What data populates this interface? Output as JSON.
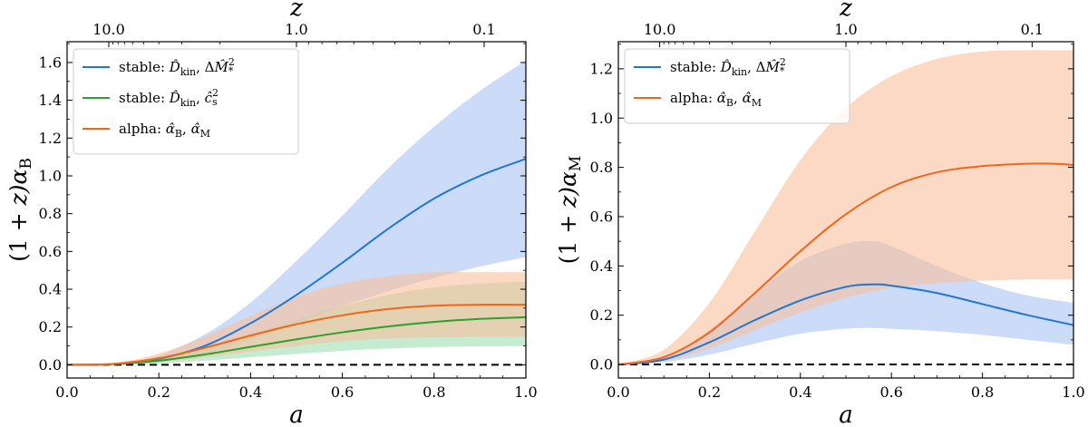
{
  "chart_data": [
    {
      "type": "line",
      "panel": "left",
      "ylabel": "(1 + z)α_B",
      "ylabel_parts": {
        "prefix": "(1 + ",
        "z": "z",
        "mid": ")α",
        "sub": "B"
      },
      "xlabel": "a",
      "top_label": "z",
      "xlim": [
        0.0,
        1.0
      ],
      "ylim": [
        -0.07,
        1.71
      ],
      "x_ticks": [
        "0.0",
        "0.2",
        "0.4",
        "0.6",
        "0.8",
        "1.0"
      ],
      "y_ticks": [
        "0.0",
        "0.2",
        "0.4",
        "0.6",
        "0.8",
        "1.0",
        "1.2",
        "1.4",
        "1.6"
      ],
      "top_ticks": [
        {
          "z": 10,
          "label": "10.0"
        },
        {
          "z": 1,
          "label": "1.0"
        },
        {
          "z": 0.1,
          "label": "0.1"
        }
      ],
      "legend_position": "top-left",
      "series": [
        {
          "name": "stable: D̂_kin, ΔM̂²_*",
          "legend": {
            "prefix": "stable: ",
            "D": "D̂",
            "Dsub": "kin",
            "sep": ", Δ",
            "M": "M̂",
            "Msup": "2",
            "Msub": "*"
          },
          "color": "#1f77d4",
          "fill": "#aac4f4",
          "x": [
            0.0,
            0.1,
            0.2,
            0.3,
            0.4,
            0.5,
            0.6,
            0.7,
            0.8,
            0.9,
            1.0
          ],
          "value": [
            0.0,
            0.004,
            0.032,
            0.1,
            0.22,
            0.37,
            0.54,
            0.72,
            0.88,
            1.0,
            1.09
          ],
          "lower": [
            0.0,
            0.002,
            0.018,
            0.06,
            0.13,
            0.22,
            0.31,
            0.39,
            0.46,
            0.52,
            0.57
          ],
          "upper": [
            0.0,
            0.006,
            0.05,
            0.16,
            0.33,
            0.55,
            0.79,
            1.04,
            1.26,
            1.45,
            1.61
          ]
        },
        {
          "name": "stable: D̂_kin, ĉ²_s",
          "legend": {
            "prefix": "stable: ",
            "D": "D̂",
            "Dsub": "kin",
            "sep": ", ",
            "c": "ĉ",
            "csup": "2",
            "csub": "s"
          },
          "color": "#2ca02c",
          "fill": "#9fdfb2",
          "x": [
            0.0,
            0.1,
            0.2,
            0.3,
            0.4,
            0.5,
            0.6,
            0.7,
            0.8,
            0.9,
            1.0
          ],
          "value": [
            0.0,
            0.004,
            0.022,
            0.055,
            0.095,
            0.135,
            0.172,
            0.203,
            0.227,
            0.243,
            0.252
          ],
          "lower": [
            0.0,
            0.001,
            0.008,
            0.022,
            0.04,
            0.058,
            0.074,
            0.086,
            0.094,
            0.098,
            0.1
          ],
          "upper": [
            0.0,
            0.006,
            0.038,
            0.095,
            0.165,
            0.24,
            0.31,
            0.37,
            0.41,
            0.43,
            0.44
          ]
        },
        {
          "name": "alpha: α̂_B, α̂_M",
          "legend": {
            "prefix": "alpha: ",
            "a1": "α̂",
            "a1sub": "B",
            "sep": ", ",
            "a2": "α̂",
            "a2sub": "M"
          },
          "color": "#f0661a",
          "fill": "#f8c09c",
          "x": [
            0.0,
            0.1,
            0.2,
            0.3,
            0.4,
            0.5,
            0.6,
            0.7,
            0.8,
            0.9,
            1.0
          ],
          "value": [
            0.0,
            0.005,
            0.035,
            0.09,
            0.155,
            0.215,
            0.262,
            0.295,
            0.313,
            0.318,
            0.318
          ],
          "lower": [
            0.0,
            0.002,
            0.015,
            0.04,
            0.07,
            0.1,
            0.125,
            0.14,
            0.145,
            0.148,
            0.148
          ],
          "upper": [
            0.0,
            0.008,
            0.06,
            0.15,
            0.26,
            0.36,
            0.43,
            0.47,
            0.49,
            0.49,
            0.49
          ]
        }
      ]
    },
    {
      "type": "line",
      "panel": "right",
      "ylabel": "(1 + z)α_M",
      "ylabel_parts": {
        "prefix": "(1 + ",
        "z": "z",
        "mid": ")α",
        "sub": "M"
      },
      "xlabel": "a",
      "top_label": "z",
      "xlim": [
        0.0,
        1.0
      ],
      "ylim": [
        -0.055,
        1.31
      ],
      "x_ticks": [
        "0.0",
        "0.2",
        "0.4",
        "0.6",
        "0.8",
        "1.0"
      ],
      "y_ticks": [
        "0.0",
        "0.2",
        "0.4",
        "0.6",
        "0.8",
        "1.0",
        "1.2"
      ],
      "top_ticks": [
        {
          "z": 10,
          "label": "10.0"
        },
        {
          "z": 1,
          "label": "1.0"
        },
        {
          "z": 0.1,
          "label": "0.1"
        }
      ],
      "legend_position": "top-left",
      "series": [
        {
          "name": "stable: D̂_kin, ΔM̂²_*",
          "legend": {
            "prefix": "stable: ",
            "D": "D̂",
            "Dsub": "kin",
            "sep": ", Δ",
            "M": "M̂",
            "Msup": "2",
            "Msub": "*"
          },
          "color": "#1f77d4",
          "fill": "#aac4f4",
          "x": [
            0.0,
            0.1,
            0.2,
            0.3,
            0.4,
            0.5,
            0.56,
            0.6,
            0.7,
            0.8,
            0.9,
            1.0
          ],
          "value": [
            0.0,
            0.02,
            0.09,
            0.18,
            0.26,
            0.315,
            0.325,
            0.32,
            0.29,
            0.245,
            0.2,
            0.16
          ],
          "lower": [
            0.0,
            0.01,
            0.04,
            0.085,
            0.125,
            0.145,
            0.148,
            0.145,
            0.135,
            0.12,
            0.1,
            0.08
          ],
          "upper": [
            0.0,
            0.03,
            0.14,
            0.29,
            0.42,
            0.49,
            0.5,
            0.48,
            0.4,
            0.33,
            0.28,
            0.25
          ]
        },
        {
          "name": "alpha: α̂_B, α̂_M",
          "legend": {
            "prefix": "alpha: ",
            "a1": "α̂",
            "a1sub": "B",
            "sep": ", ",
            "a2": "α̂",
            "a2sub": "M"
          },
          "color": "#f0661a",
          "fill": "#f8c09c",
          "x": [
            0.0,
            0.1,
            0.2,
            0.3,
            0.4,
            0.5,
            0.6,
            0.7,
            0.8,
            0.9,
            0.95,
            1.0
          ],
          "value": [
            0.0,
            0.03,
            0.13,
            0.29,
            0.46,
            0.61,
            0.72,
            0.78,
            0.805,
            0.815,
            0.815,
            0.81
          ],
          "lower": [
            0.0,
            0.015,
            0.065,
            0.14,
            0.21,
            0.27,
            0.31,
            0.33,
            0.34,
            0.345,
            0.345,
            0.345
          ],
          "upper": [
            0.0,
            0.06,
            0.25,
            0.54,
            0.83,
            1.04,
            1.17,
            1.24,
            1.27,
            1.275,
            1.275,
            1.275
          ]
        }
      ]
    }
  ]
}
